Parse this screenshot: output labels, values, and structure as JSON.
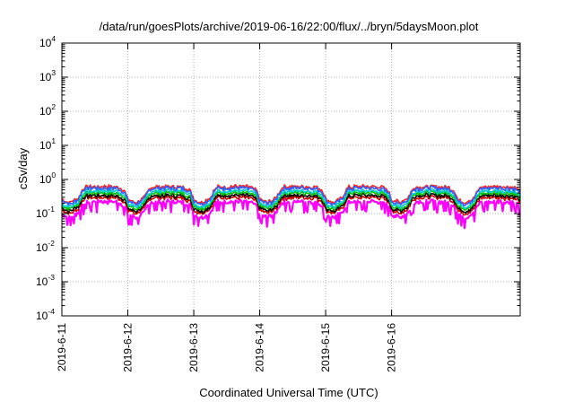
{
  "chart_data": {
    "type": "line",
    "title": "/data/run/goesPlots/archive/2019-06-16/22:00/flux/../bryn/5daysMoon.plot",
    "xlabel": "Coordinated Universal Time (UTC)",
    "ylabel": "cSv/day",
    "x_ticks": [
      "2019-6-11",
      "2019-6-12",
      "2019-6-13",
      "2019-6-14",
      "2019-6-15",
      "2019-6-16"
    ],
    "y_ticks": [
      {
        "base": "10",
        "exp": "-4"
      },
      {
        "base": "10",
        "exp": "-3"
      },
      {
        "base": "10",
        "exp": "-2"
      },
      {
        "base": "10",
        "exp": "-1"
      },
      {
        "base": "10",
        "exp": "0"
      },
      {
        "base": "10",
        "exp": "1"
      },
      {
        "base": "10",
        "exp": "2"
      },
      {
        "base": "10",
        "exp": "3"
      },
      {
        "base": "10",
        "exp": "4"
      }
    ],
    "y_scale": "log",
    "ylim": [
      0.0001,
      10000
    ],
    "xlim_days": [
      0,
      6.95
    ],
    "grid": true,
    "series": [
      {
        "color": "#ff00ff",
        "level": 0.19
      },
      {
        "color": "#cc0000",
        "level": 0.25
      },
      {
        "color": "#000000",
        "level": 0.29
      },
      {
        "color": "#00c000",
        "level": 0.34
      },
      {
        "color": "#00cccc",
        "level": 0.39
      },
      {
        "color": "#ff2020",
        "level": 0.52
      },
      {
        "color": "#3060ff",
        "level": 0.47
      }
    ],
    "day_pattern": [
      {
        "day": 0.0,
        "factor": 0.5
      },
      {
        "day": 0.12,
        "factor": 0.4
      },
      {
        "day": 0.25,
        "factor": 0.55
      },
      {
        "day": 0.35,
        "factor": 1.15
      },
      {
        "day": 0.6,
        "factor": 1.2
      },
      {
        "day": 0.85,
        "factor": 1.15
      },
      {
        "day": 0.95,
        "factor": 0.9
      },
      {
        "day": 1.0,
        "factor": 0.5
      }
    ]
  }
}
